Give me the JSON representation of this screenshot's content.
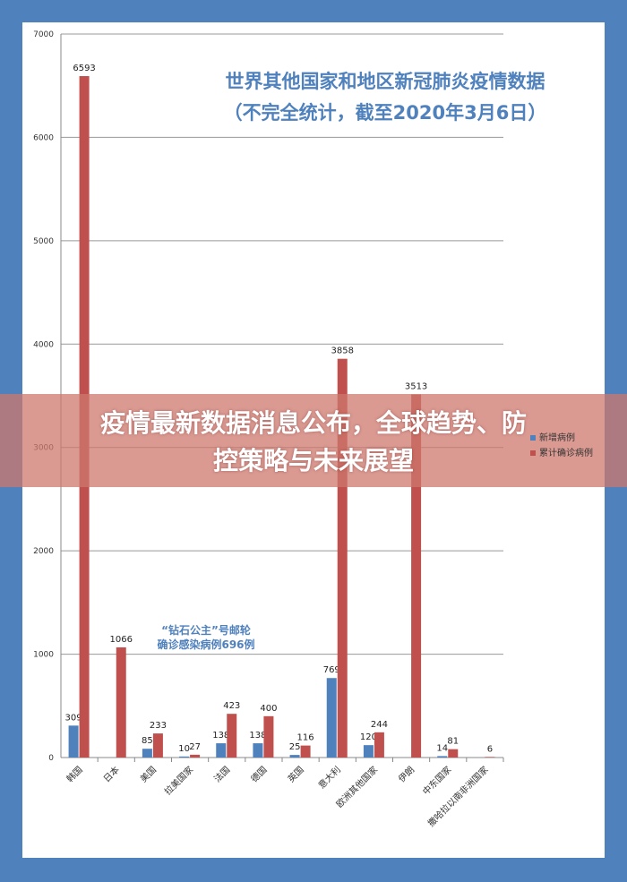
{
  "chart_data": {
    "type": "bar",
    "title": "世界其他国家和地区新冠肺炎疫情数据",
    "subtitle": "（不完全统计，截至2020年3月6日）",
    "categories": [
      "韩国",
      "日本",
      "美国",
      "拉美国家",
      "法国",
      "德国",
      "英国",
      "意大利",
      "欧洲其他国家",
      "伊朗",
      "中东国家",
      "撒哈拉以南非洲国家"
    ],
    "series": [
      {
        "name": "新增病例",
        "color": "#4f81bd",
        "values": [
          309,
          null,
          85,
          10,
          138,
          138,
          25,
          769,
          120,
          null,
          14,
          null
        ]
      },
      {
        "name": "累计确诊病例",
        "color": "#c0504d",
        "values": [
          6593,
          1066,
          233,
          27,
          423,
          400,
          116,
          3858,
          244,
          3513,
          81,
          6
        ]
      }
    ],
    "ylim": [
      0,
      7000
    ],
    "yticks": [
      0,
      1000,
      2000,
      3000,
      4000,
      5000,
      6000,
      7000
    ],
    "grid": true,
    "legend": "right",
    "annotation": [
      "“钻石公主”号邮轮",
      "确诊感染病例696例"
    ]
  },
  "banner": {
    "line1": "疫情最新数据消息公布，全球趋势、防",
    "line2": "控策略与未来展望"
  }
}
